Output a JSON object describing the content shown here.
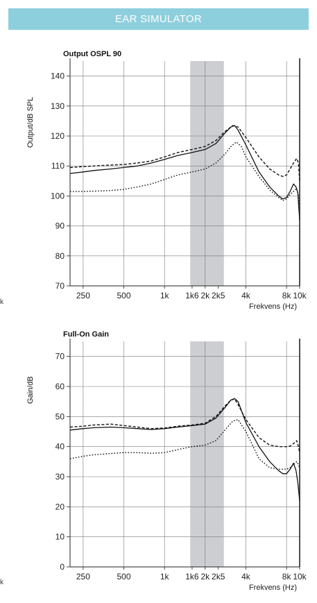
{
  "header": {
    "title": "EAR SIMULATOR"
  },
  "edge_fragment": "k",
  "colors": {
    "banner": "#8ecfdd",
    "band": "#cdced2",
    "line": "#111111"
  },
  "chart_data": [
    {
      "type": "line",
      "title": "Output OSPL 90",
      "ylabel": "Output/dB SPL",
      "xlabel": "Frekvens (Hz)",
      "xscale": "log",
      "xlim": [
        200,
        10000
      ],
      "ylim": [
        70,
        145
      ],
      "yticks": [
        70,
        80,
        90,
        100,
        110,
        120,
        130,
        140
      ],
      "xticks": [
        {
          "value": 250,
          "label": "250"
        },
        {
          "value": 500,
          "label": "500"
        },
        {
          "value": 1000,
          "label": "1k"
        },
        {
          "value": 1600,
          "label": "1k6"
        },
        {
          "value": 2000,
          "label": "2k"
        },
        {
          "value": 2500,
          "label": "2k5"
        },
        {
          "value": 4000,
          "label": "4k"
        },
        {
          "value": 8000,
          "label": "8k"
        },
        {
          "value": 10000,
          "label": "10k"
        }
      ],
      "vgrid": [
        250,
        500,
        1000,
        2000,
        4000,
        8000
      ],
      "band": [
        1550,
        2750
      ],
      "series": [
        {
          "style": "solid",
          "points": [
            [
              200,
              107.5
            ],
            [
              250,
              108
            ],
            [
              300,
              108.5
            ],
            [
              400,
              109
            ],
            [
              500,
              109.5
            ],
            [
              630,
              110
            ],
            [
              800,
              111
            ],
            [
              1000,
              112.2
            ],
            [
              1250,
              113.5
            ],
            [
              1600,
              114.5
            ],
            [
              2000,
              115.5
            ],
            [
              2400,
              117.5
            ],
            [
              2800,
              121
            ],
            [
              3100,
              123
            ],
            [
              3300,
              123.5
            ],
            [
              3500,
              122
            ],
            [
              4000,
              117
            ],
            [
              5000,
              108
            ],
            [
              6000,
              103
            ],
            [
              7000,
              100
            ],
            [
              7500,
              99
            ],
            [
              8000,
              99.5
            ],
            [
              8500,
              101.5
            ],
            [
              9000,
              104
            ],
            [
              9400,
              103
            ],
            [
              9700,
              101
            ],
            [
              9900,
              95
            ],
            [
              10000,
              92
            ]
          ]
        },
        {
          "style": "dashed",
          "points": [
            [
              200,
              109.5
            ],
            [
              250,
              109.8
            ],
            [
              300,
              110
            ],
            [
              400,
              110.3
            ],
            [
              500,
              110.5
            ],
            [
              630,
              111
            ],
            [
              800,
              111.7
            ],
            [
              1000,
              113
            ],
            [
              1250,
              114.5
            ],
            [
              1600,
              115.5
            ],
            [
              2000,
              116.5
            ],
            [
              2400,
              118.5
            ],
            [
              2800,
              121.5
            ],
            [
              3200,
              123.5
            ],
            [
              3500,
              123
            ],
            [
              4000,
              119.5
            ],
            [
              5000,
              113
            ],
            [
              6000,
              109
            ],
            [
              7000,
              107
            ],
            [
              7500,
              106.5
            ],
            [
              8000,
              107
            ],
            [
              8500,
              109
            ],
            [
              9000,
              111
            ],
            [
              9500,
              112.5
            ],
            [
              9800,
              111
            ],
            [
              10000,
              105
            ]
          ]
        },
        {
          "style": "dotted",
          "points": [
            [
              200,
              101.5
            ],
            [
              250,
              101.5
            ],
            [
              300,
              101.6
            ],
            [
              400,
              101.8
            ],
            [
              500,
              102.2
            ],
            [
              630,
              103
            ],
            [
              800,
              104
            ],
            [
              1000,
              105.5
            ],
            [
              1250,
              107
            ],
            [
              1600,
              108
            ],
            [
              2000,
              109
            ],
            [
              2400,
              111
            ],
            [
              2800,
              114
            ],
            [
              3100,
              116.5
            ],
            [
              3400,
              118
            ],
            [
              3700,
              116.5
            ],
            [
              4000,
              113
            ],
            [
              5000,
              106.5
            ],
            [
              6000,
              102
            ],
            [
              7000,
              99.5
            ],
            [
              7500,
              98.5
            ],
            [
              8000,
              99
            ],
            [
              8500,
              100.5
            ],
            [
              9000,
              101.5
            ],
            [
              9500,
              102.5
            ],
            [
              9800,
              100
            ],
            [
              10000,
              97
            ]
          ]
        }
      ]
    },
    {
      "type": "line",
      "title": "Full-On Gain",
      "ylabel": "Gain/dB",
      "xlabel": "Frekvens (Hz)",
      "xscale": "log",
      "xlim": [
        200,
        10000
      ],
      "ylim": [
        0,
        75
      ],
      "yticks": [
        0,
        10,
        20,
        30,
        40,
        50,
        60,
        70
      ],
      "xticks": [
        {
          "value": 250,
          "label": "250"
        },
        {
          "value": 500,
          "label": "500"
        },
        {
          "value": 1000,
          "label": "1k"
        },
        {
          "value": 1600,
          "label": "1k6"
        },
        {
          "value": 2000,
          "label": "2k"
        },
        {
          "value": 2500,
          "label": "2k5"
        },
        {
          "value": 4000,
          "label": "4k"
        },
        {
          "value": 8000,
          "label": "8k"
        },
        {
          "value": 10000,
          "label": "10k"
        }
      ],
      "vgrid": [
        250,
        500,
        1000,
        2000,
        4000,
        8000
      ],
      "band": [
        1550,
        2750
      ],
      "series": [
        {
          "style": "solid",
          "points": [
            [
              200,
              45.5
            ],
            [
              250,
              46
            ],
            [
              300,
              46.3
            ],
            [
              400,
              46.5
            ],
            [
              500,
              46.3
            ],
            [
              630,
              46
            ],
            [
              800,
              45.7
            ],
            [
              1000,
              46
            ],
            [
              1250,
              46.5
            ],
            [
              1600,
              47
            ],
            [
              2000,
              47.5
            ],
            [
              2400,
              49.5
            ],
            [
              2800,
              53
            ],
            [
              3100,
              55.5
            ],
            [
              3300,
              56
            ],
            [
              3500,
              55
            ],
            [
              4000,
              48
            ],
            [
              5000,
              40
            ],
            [
              6000,
              35
            ],
            [
              7000,
              32
            ],
            [
              7500,
              31
            ],
            [
              8000,
              31
            ],
            [
              8500,
              32.5
            ],
            [
              9000,
              34.5
            ],
            [
              9400,
              32
            ],
            [
              9700,
              28
            ],
            [
              10000,
              22
            ]
          ]
        },
        {
          "style": "dashed",
          "points": [
            [
              200,
              46.5
            ],
            [
              250,
              46.8
            ],
            [
              300,
              47.2
            ],
            [
              400,
              47.5
            ],
            [
              500,
              47
            ],
            [
              630,
              46.5
            ],
            [
              800,
              46
            ],
            [
              1000,
              46.2
            ],
            [
              1250,
              46.8
            ],
            [
              1600,
              47.2
            ],
            [
              2000,
              47.8
            ],
            [
              2400,
              50
            ],
            [
              2800,
              53.5
            ],
            [
              3100,
              55.5
            ],
            [
              3300,
              55.8
            ],
            [
              3500,
              54
            ],
            [
              4000,
              49
            ],
            [
              5000,
              43
            ],
            [
              6000,
              40.5
            ],
            [
              7000,
              40
            ],
            [
              8000,
              40
            ],
            [
              8500,
              40.2
            ],
            [
              9000,
              41
            ],
            [
              9500,
              42
            ],
            [
              9800,
              40
            ],
            [
              10000,
              38
            ]
          ]
        },
        {
          "style": "dotted",
          "points": [
            [
              200,
              36
            ],
            [
              250,
              36.8
            ],
            [
              300,
              37.3
            ],
            [
              400,
              37.7
            ],
            [
              500,
              38
            ],
            [
              630,
              38
            ],
            [
              800,
              37.8
            ],
            [
              1000,
              38
            ],
            [
              1250,
              39
            ],
            [
              1600,
              40
            ],
            [
              2000,
              40.5
            ],
            [
              2400,
              42
            ],
            [
              2800,
              45.5
            ],
            [
              3200,
              48.5
            ],
            [
              3500,
              49
            ],
            [
              4000,
              45
            ],
            [
              5000,
              36
            ],
            [
              6000,
              33
            ],
            [
              7000,
              32.5
            ],
            [
              8000,
              32.5
            ],
            [
              8500,
              33
            ],
            [
              9000,
              34
            ],
            [
              9500,
              35
            ],
            [
              9800,
              34
            ],
            [
              10000,
              33
            ]
          ]
        }
      ]
    }
  ]
}
